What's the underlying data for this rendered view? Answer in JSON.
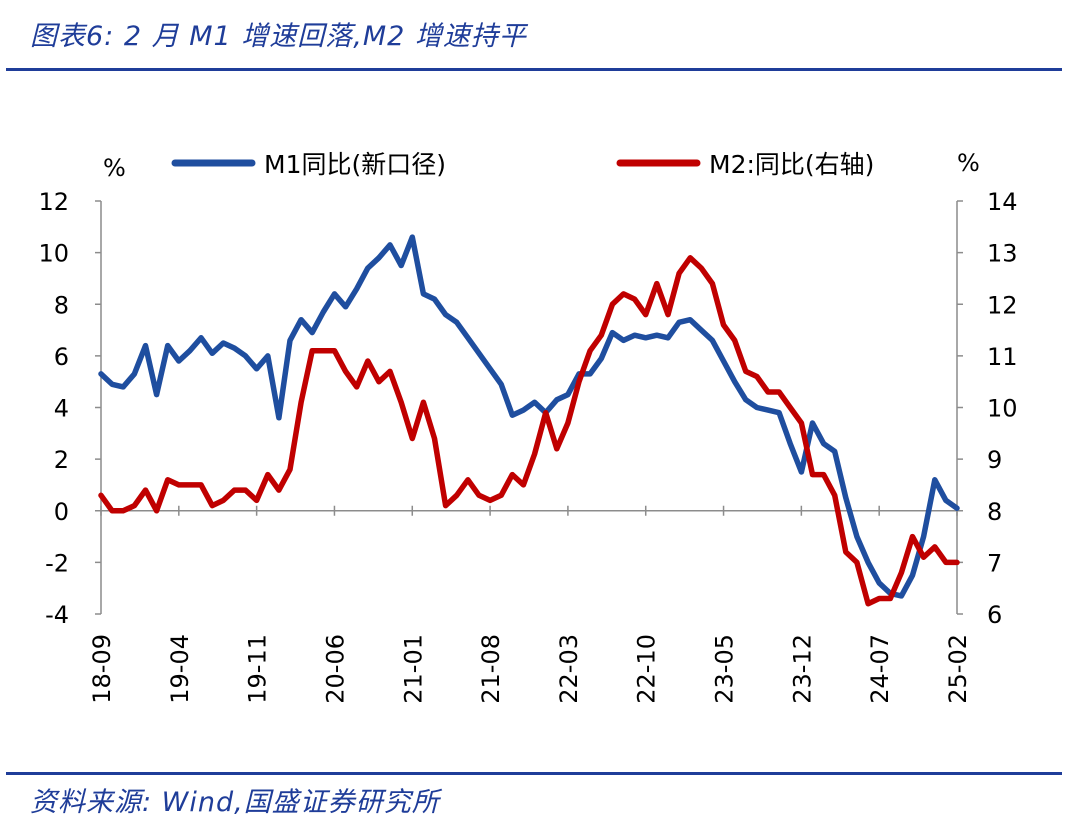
{
  "header": {
    "title": "图表6:  2 月 M1 增速回落,M2 增速持平"
  },
  "footer": {
    "source": "资料来源:  Wind,国盛证券研究所"
  },
  "chart_data": {
    "type": "line",
    "left_axis_unit": "%",
    "right_axis_unit": "%",
    "ylim_left": [
      -4,
      12
    ],
    "yticks_left": [
      "12",
      "10",
      "8",
      "6",
      "4",
      "2",
      "0",
      "-2",
      "-4"
    ],
    "ylim_right": [
      6,
      14
    ],
    "yticks_right": [
      "14",
      "13",
      "12",
      "11",
      "10",
      "9",
      "8",
      "7",
      "6"
    ],
    "xtick_labels": [
      "18-09",
      "19-04",
      "19-11",
      "20-06",
      "21-01",
      "21-08",
      "22-03",
      "22-10",
      "23-05",
      "23-12",
      "24-07",
      "25-02"
    ],
    "colors": {
      "m1": "#1f4e9f",
      "m2": "#c00000",
      "axis": "#8c8c8c"
    },
    "series": [
      {
        "name": "M1同比(新口径)",
        "axis": "left",
        "color": "#1f4e9f",
        "values": [
          5.3,
          4.9,
          4.8,
          5.3,
          6.4,
          4.5,
          6.4,
          5.8,
          6.2,
          6.7,
          6.1,
          6.5,
          6.3,
          6.0,
          5.5,
          6.0,
          3.6,
          6.6,
          7.4,
          6.9,
          7.7,
          8.4,
          7.9,
          8.6,
          9.4,
          9.8,
          10.3,
          9.5,
          10.6,
          8.4,
          8.2,
          7.6,
          7.3,
          6.7,
          6.1,
          5.5,
          4.9,
          3.7,
          3.9,
          4.2,
          3.8,
          4.3,
          4.5,
          5.3,
          5.3,
          5.9,
          6.9,
          6.6,
          6.8,
          6.7,
          6.8,
          6.7,
          7.3,
          7.4,
          7.0,
          6.6,
          5.8,
          5.0,
          4.3,
          4.0,
          3.9,
          3.8,
          2.6,
          1.5,
          3.4,
          2.6,
          2.3,
          0.5,
          -1.0,
          -2.0,
          -2.8,
          -3.2,
          -3.3,
          -2.5,
          -1.0,
          1.2,
          0.4,
          0.1
        ]
      },
      {
        "name": "M2:同比(右轴)",
        "axis": "right",
        "color": "#c00000",
        "values": [
          8.3,
          8.0,
          8.0,
          8.1,
          8.4,
          8.0,
          8.6,
          8.5,
          8.5,
          8.5,
          8.1,
          8.2,
          8.4,
          8.4,
          8.2,
          8.7,
          8.4,
          8.8,
          10.1,
          11.1,
          11.1,
          11.1,
          10.7,
          10.4,
          10.9,
          10.5,
          10.7,
          10.1,
          9.4,
          10.1,
          9.4,
          8.1,
          8.3,
          8.6,
          8.3,
          8.2,
          8.3,
          8.7,
          8.5,
          9.1,
          9.9,
          9.2,
          9.7,
          10.5,
          11.1,
          11.4,
          12.0,
          12.2,
          12.1,
          11.8,
          12.4,
          11.8,
          12.6,
          12.9,
          12.7,
          12.4,
          11.6,
          11.3,
          10.7,
          10.6,
          10.3,
          10.3,
          10.0,
          9.7,
          8.7,
          8.7,
          8.3,
          7.2,
          7.0,
          6.2,
          6.3,
          6.3,
          6.8,
          7.5,
          7.1,
          7.3,
          7.0,
          7.0
        ]
      }
    ]
  }
}
